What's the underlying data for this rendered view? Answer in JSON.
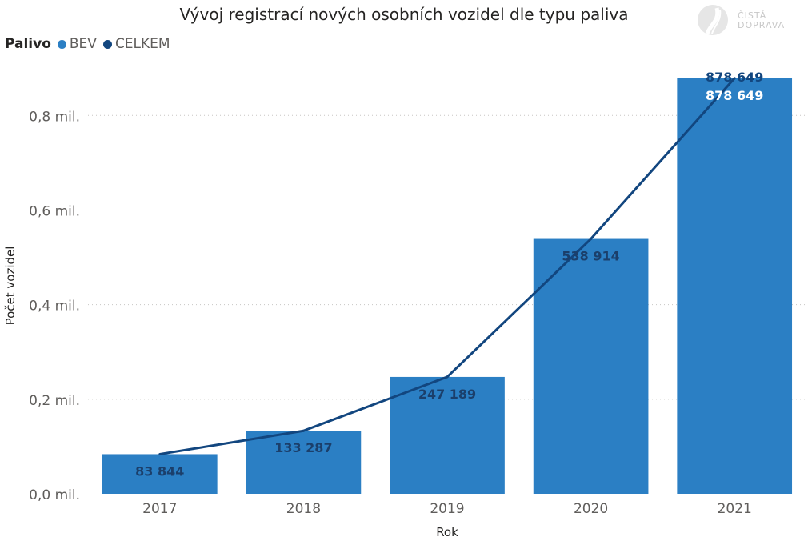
{
  "chart_data": {
    "type": "bar",
    "title": "Vývoj registrací nových osobních vozidel dle typu paliva",
    "xlabel": "Rok",
    "ylabel": "Počet vozidel",
    "legend_title": "Palivo",
    "legend_position": "top-left",
    "grid": true,
    "categories": [
      "2017",
      "2018",
      "2019",
      "2020",
      "2021"
    ],
    "ylim": [
      0,
      880000
    ],
    "yticks": [
      {
        "value": 0,
        "label": "0,0 mil."
      },
      {
        "value": 200000,
        "label": "0,2 mil."
      },
      {
        "value": 400000,
        "label": "0,4 mil."
      },
      {
        "value": 600000,
        "label": "0,6 mil."
      },
      {
        "value": 800000,
        "label": "0,8 mil."
      }
    ],
    "series": [
      {
        "name": "BEV",
        "type": "bar",
        "color": "#2b7fc4",
        "values": [
          83844,
          133287,
          247189,
          538914,
          878649
        ],
        "labels": [
          "83 844",
          "133 287",
          "247 189",
          "538 914",
          "878 649"
        ]
      },
      {
        "name": "CELKEM",
        "type": "line",
        "color": "#12467f",
        "values": [
          83844,
          133287,
          247189,
          538914,
          878649
        ],
        "labels": [
          "83 844",
          "133 287",
          "247 189",
          "538 914",
          "878 649"
        ]
      }
    ]
  },
  "logo": {
    "line1": "ČISTÁ",
    "line2": "DOPRAVA"
  }
}
